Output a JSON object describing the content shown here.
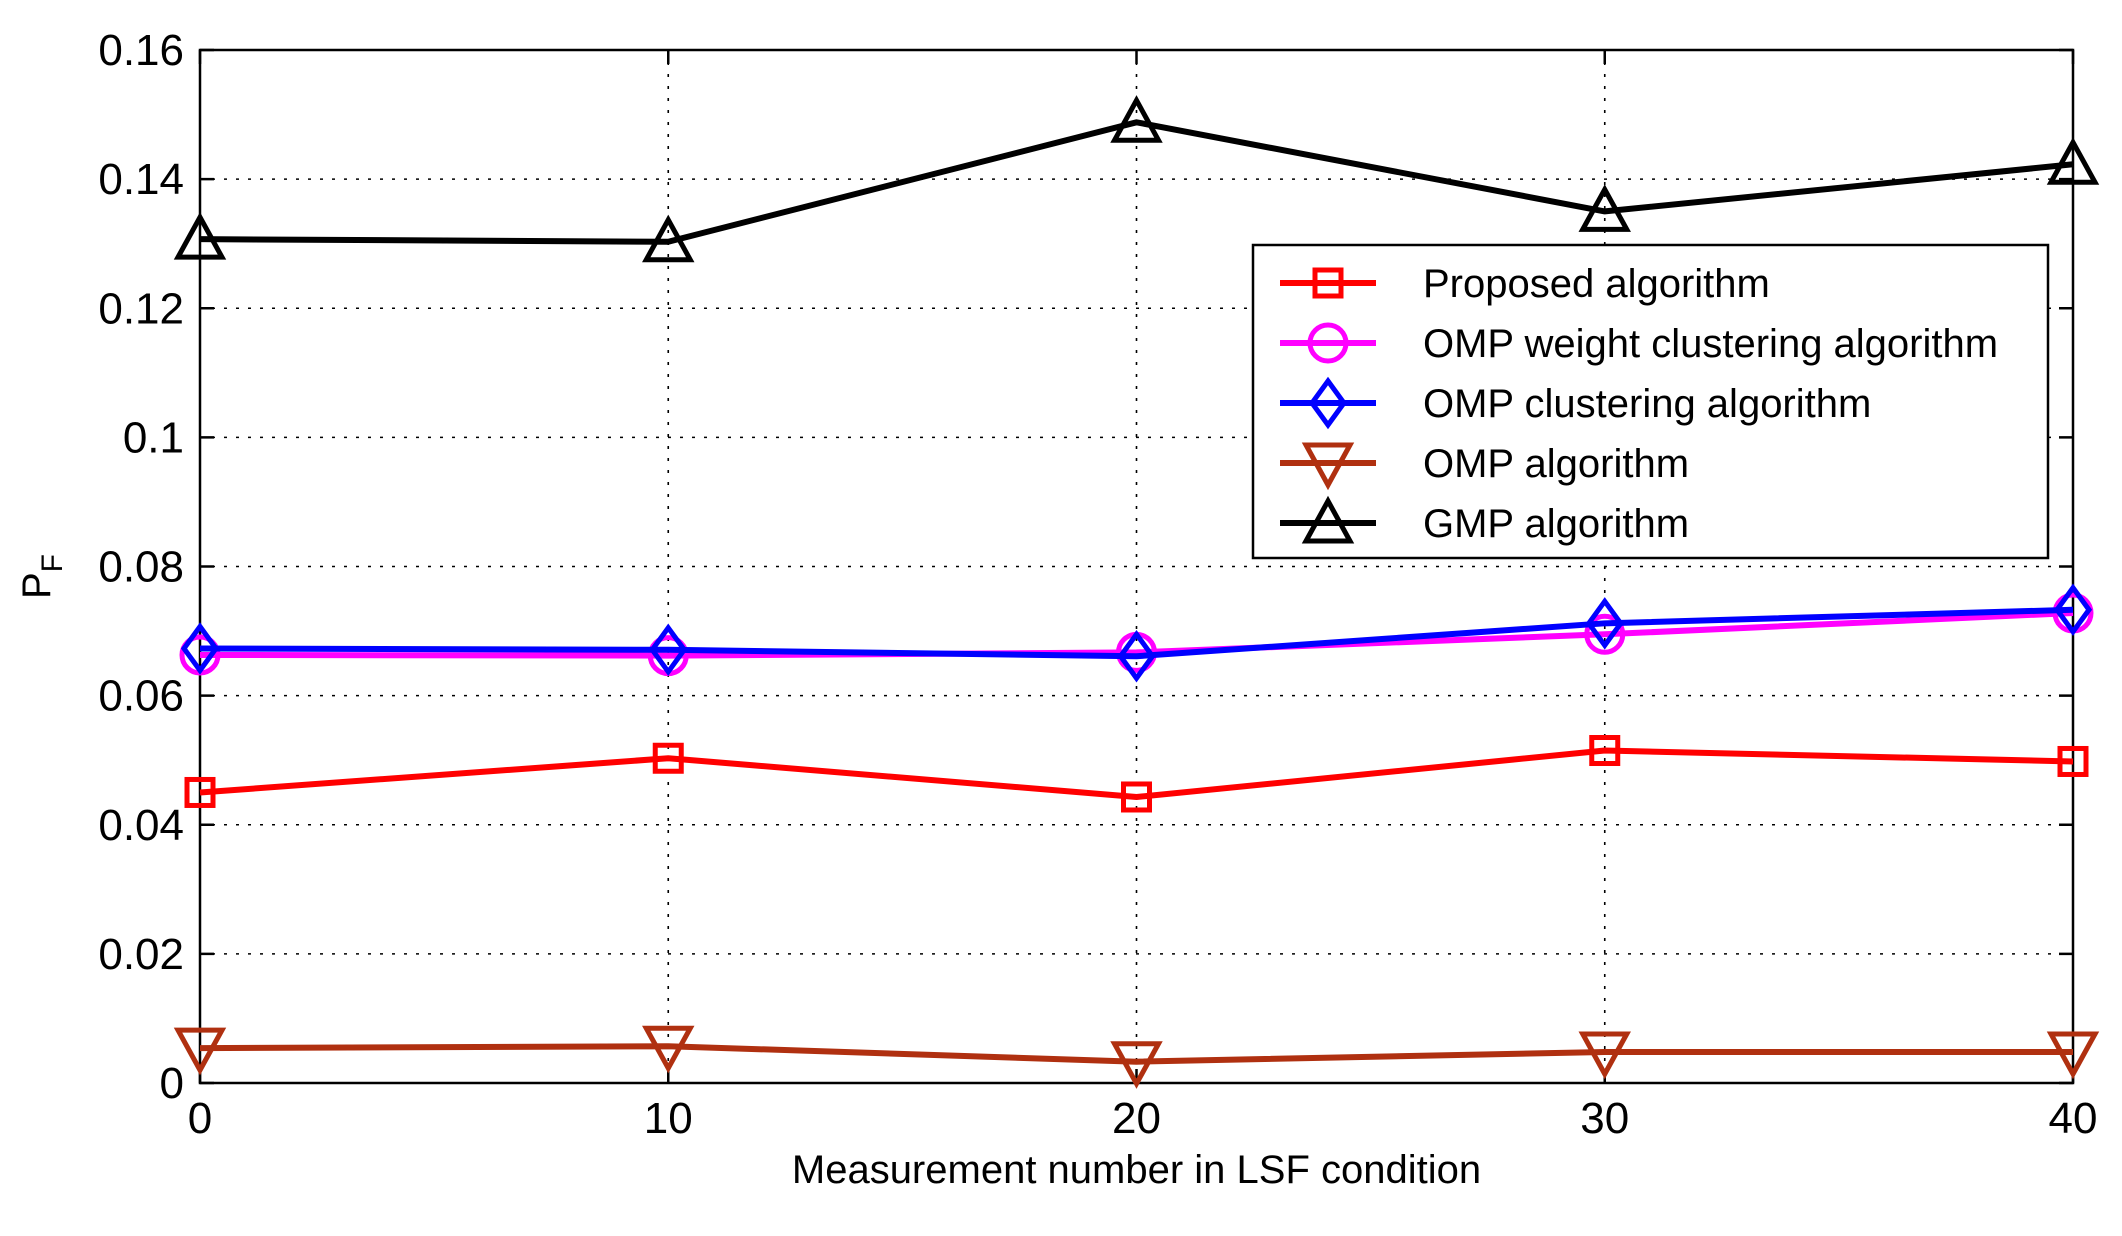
{
  "chart_data": {
    "type": "line",
    "title": "",
    "xlabel": "Measurement number in LSF condition",
    "ylabel": "P",
    "ylabel_subscript": "F",
    "x": [
      0,
      10,
      20,
      30,
      40
    ],
    "xlim": [
      0,
      40
    ],
    "ylim": [
      0,
      0.16
    ],
    "xticks": [
      0,
      10,
      20,
      30,
      40
    ],
    "xtick_labels": [
      "0",
      "10",
      "20",
      "30",
      "40"
    ],
    "yticks": [
      0,
      0.02,
      0.04,
      0.06,
      0.08,
      0.1,
      0.12,
      0.14,
      0.16
    ],
    "ytick_labels": [
      "0",
      "0.02",
      "0.04",
      "0.06",
      "0.08",
      "0.1",
      "0.12",
      "0.14",
      "0.16"
    ],
    "grid": true,
    "legend_position": "upper-right",
    "series": [
      {
        "name": "Proposed algorithm",
        "color": "#ff0000",
        "marker": "square",
        "values": [
          0.045,
          0.0503,
          0.0443,
          0.0515,
          0.0498
        ]
      },
      {
        "name": "OMP weight clustering algorithm",
        "color": "#ff00ff",
        "marker": "circle",
        "values": [
          0.0663,
          0.0662,
          0.0667,
          0.0695,
          0.0728
        ]
      },
      {
        "name": "OMP clustering algorithm",
        "color": "#0000ff",
        "marker": "diamond",
        "values": [
          0.0673,
          0.0671,
          0.0661,
          0.0712,
          0.0733
        ]
      },
      {
        "name": "OMP algorithm",
        "color": "#b03010",
        "marker": "triangle-down",
        "values": [
          0.0054,
          0.0057,
          0.0033,
          0.0048,
          0.0048
        ]
      },
      {
        "name": "GMP algorithm",
        "color": "#000000",
        "marker": "triangle-up",
        "values": [
          0.1307,
          0.1303,
          0.1488,
          0.135,
          0.1423
        ]
      }
    ]
  }
}
